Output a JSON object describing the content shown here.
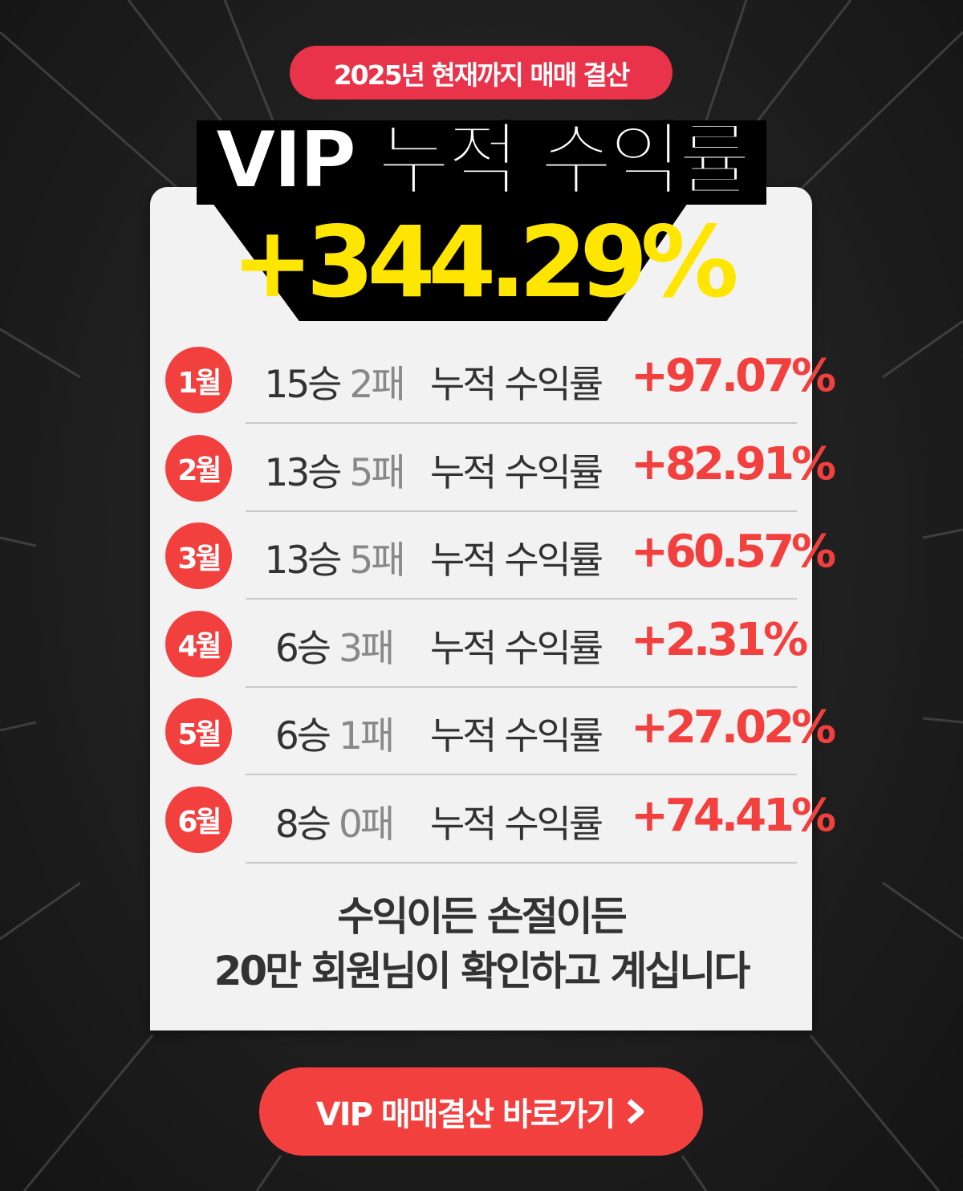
{
  "header": {
    "badge": "2025년 현재까지 매매 결산",
    "title": "VIP 누적 수익률",
    "total_return": "+344.29%"
  },
  "colors": {
    "accent_red": "#f2403f",
    "badge_red": "#e8334a",
    "highlight_yellow": "#ffe600",
    "card_bg": "#f2f2f2"
  },
  "months": [
    {
      "month": "1월",
      "wins": "15승",
      "losses": "2패",
      "label": "누적 수익률",
      "return": "+97.07%"
    },
    {
      "month": "2월",
      "wins": "13승",
      "losses": "5패",
      "label": "누적 수익률",
      "return": "+82.91%"
    },
    {
      "month": "3월",
      "wins": "13승",
      "losses": "5패",
      "label": "누적 수익률",
      "return": "+60.57%"
    },
    {
      "month": "4월",
      "wins": "6승",
      "losses": "3패",
      "label": "누적 수익률",
      "return": "+2.31%"
    },
    {
      "month": "5월",
      "wins": "6승",
      "losses": "1패",
      "label": "누적 수익률",
      "return": "+27.02%"
    },
    {
      "month": "6월",
      "wins": "8승",
      "losses": "0패",
      "label": "누적 수익률",
      "return": "+74.41%"
    }
  ],
  "footer": {
    "line1": "수익이든 손절이든",
    "line2": "20만 회원님이 확인하고 계십니다"
  },
  "cta": {
    "label": "VIP 매매결산 바로가기",
    "icon": "chevron-right-icon"
  }
}
